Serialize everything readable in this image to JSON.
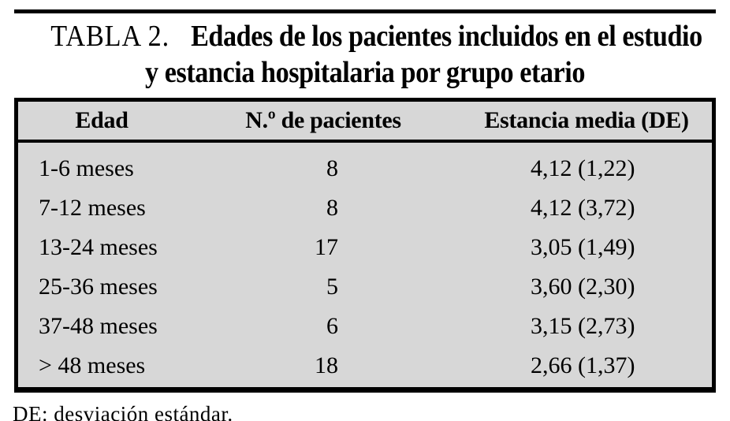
{
  "title": {
    "label": "TABLA 2.",
    "lines": [
      "Edades de los pacientes incluidos en el estudio",
      "y estancia hospitalaria por grupo etario"
    ]
  },
  "table": {
    "columns": [
      "Edad",
      "N.º de pacientes",
      "Estancia media (DE)"
    ],
    "rows": [
      {
        "age": "1-6 meses",
        "patients": "8",
        "stay": "4,12 (1,22)"
      },
      {
        "age": "7-12 meses",
        "patients": "8",
        "stay": "4,12 (3,72)"
      },
      {
        "age": "13-24 meses",
        "patients": "17",
        "stay": "3,05 (1,49)"
      },
      {
        "age": "25-36 meses",
        "patients": "5",
        "stay": "3,60 (2,30)"
      },
      {
        "age": "37-48 meses",
        "patients": "6",
        "stay": "3,15 (2,73)"
      },
      {
        "age": "> 48 meses",
        "patients": "18",
        "stay": "2,66 (1,37)"
      }
    ],
    "colors": {
      "table_background": "#d7d7d7",
      "border": "#000000",
      "text": "#000000",
      "page_background": "#ffffff"
    }
  },
  "footnote": {
    "text": "DE: desviación estándar."
  }
}
